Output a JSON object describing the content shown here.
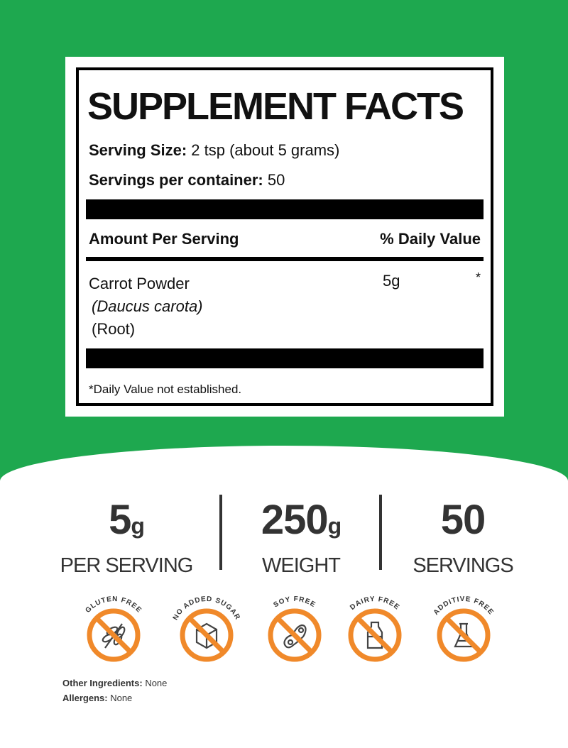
{
  "colors": {
    "green": "#1ea84f",
    "orange": "#f0892a",
    "dark": "#333333"
  },
  "facts": {
    "title": "SUPPLEMENT FACTS",
    "serving_size_label": "Serving Size:",
    "serving_size_value": "2 tsp (about 5 grams)",
    "servings_label": "Servings per container:",
    "servings_value": "50",
    "amount_header": "Amount Per Serving",
    "dv_header": "% Daily Value",
    "ingredient": {
      "name": "Carrot Powder",
      "latin": "(Daucus carota)",
      "part": "(Root)",
      "amount": "5g",
      "dv": "*"
    },
    "footnote": "*Daily Value not established."
  },
  "stats": [
    {
      "value": "5",
      "unit": "g",
      "label": "PER SERVING"
    },
    {
      "value": "250",
      "unit": "g",
      "label": "WEIGHT"
    },
    {
      "value": "50",
      "unit": "",
      "label": "SERVINGS"
    }
  ],
  "badges": [
    {
      "label": "GLUTEN FREE",
      "icon": "wheat-icon"
    },
    {
      "label": "NO ADDED SUGAR",
      "icon": "sugar-cube-icon"
    },
    {
      "label": "SOY FREE",
      "icon": "soybean-icon"
    },
    {
      "label": "DAIRY FREE",
      "icon": "milk-bottle-icon"
    },
    {
      "label": "ADDITIVE FREE",
      "icon": "flask-icon"
    }
  ],
  "other": {
    "ingredients_label": "Other Ingredients:",
    "ingredients_value": "None",
    "allergens_label": "Allergens:",
    "allergens_value": "None"
  }
}
